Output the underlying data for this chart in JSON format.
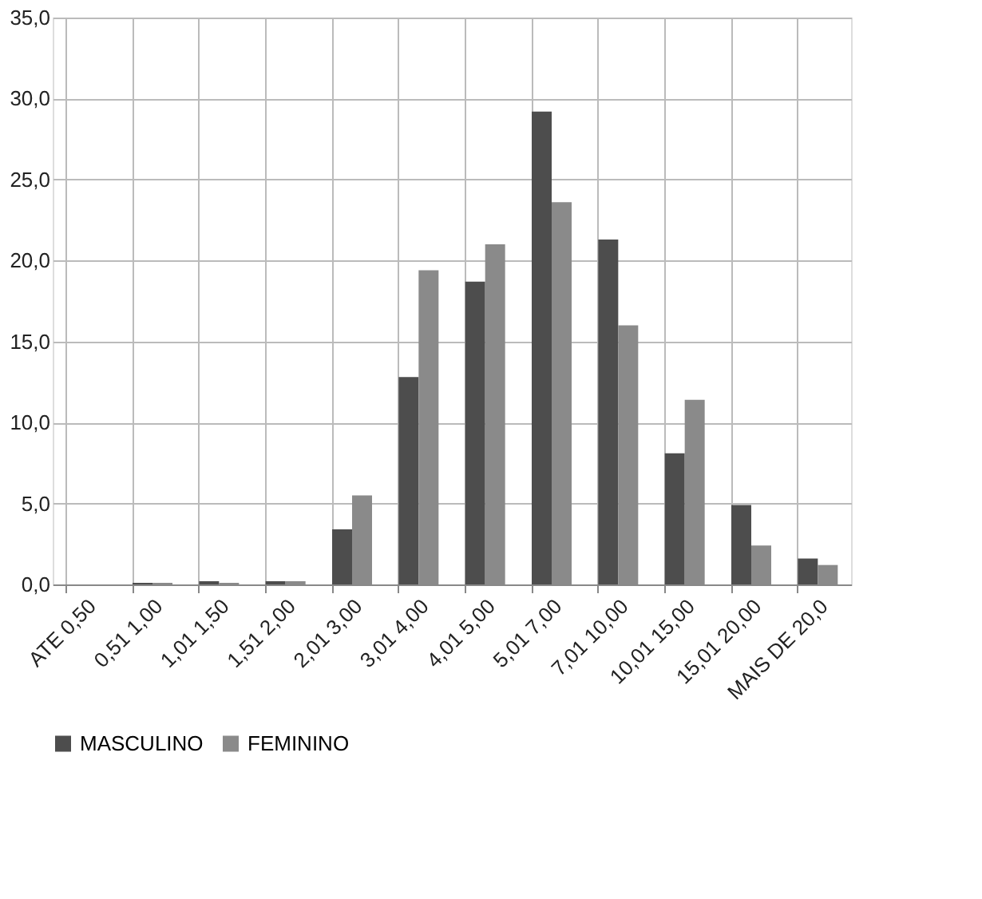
{
  "chart_data": {
    "type": "bar",
    "categories": [
      "ATE 0,50",
      "0,51 1,00",
      "1,01 1,50",
      "1,51 2,00",
      "2,01 3,00",
      "3,01 4,00",
      "4,01 5,00",
      "5,01 7,00",
      "7,01 10,00",
      "10,01 15,00",
      "15,01 20,00",
      "MAIS DE 20,0"
    ],
    "series": [
      {
        "name": "MASCULINO",
        "color": "#4d4d4d",
        "values": [
          null,
          0.1,
          0.2,
          0.2,
          3.4,
          12.8,
          18.7,
          29.2,
          21.3,
          8.1,
          4.9,
          1.6
        ]
      },
      {
        "name": "FEMININO",
        "color": "#8a8a8a",
        "values": [
          null,
          0.1,
          0.1,
          0.2,
          5.5,
          19.4,
          21.0,
          23.6,
          16.0,
          11.4,
          2.4,
          1.2
        ]
      }
    ],
    "ylim": [
      0,
      35
    ],
    "yticks": [
      {
        "value": 0,
        "label": "0,0"
      },
      {
        "value": 5,
        "label": "5,0"
      },
      {
        "value": 10,
        "label": "10,0"
      },
      {
        "value": 15,
        "label": "15,0"
      },
      {
        "value": 20,
        "label": "20,0"
      },
      {
        "value": 25,
        "label": "25,0"
      },
      {
        "value": 30,
        "label": "30,0"
      },
      {
        "value": 35,
        "label": "35,0"
      }
    ],
    "grid": true,
    "legend": "bottom"
  }
}
